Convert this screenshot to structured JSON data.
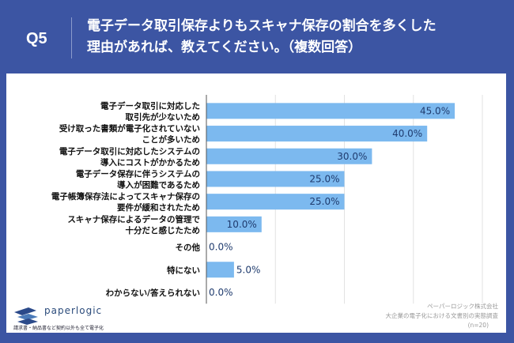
{
  "header": {
    "q": "Q5",
    "title_line1": "電子データ取引保存よりもスキャナ保存の割合を多くした",
    "title_line2": "理由があれば、教えてください。（複数回答）"
  },
  "chart_data": {
    "type": "bar",
    "orientation": "horizontal",
    "xlim": [
      0,
      50
    ],
    "grid": true,
    "bar_color": "#7cb9ef",
    "categories": [
      [
        "電子データ取引に対応した",
        "取引先が少ないため"
      ],
      [
        "受け取った書類が電子化されていない",
        "ことが多いため"
      ],
      [
        "電子データ取引に対応したシステムの",
        "導入にコストがかかるため"
      ],
      [
        "電子データ保存に伴うシステムの",
        "導入が困難であるため"
      ],
      [
        "電子帳簿保存法によってスキャナ保存の",
        "要件が緩和されたため"
      ],
      [
        "スキャナ保存によるデータの管理で",
        "十分だと感じたため"
      ],
      [
        "その他"
      ],
      [
        "特にない"
      ],
      [
        "わからない/答えられない"
      ]
    ],
    "values": [
      45.0,
      40.0,
      30.0,
      25.0,
      25.0,
      10.0,
      0.0,
      5.0,
      0.0
    ],
    "labels": [
      "45.0%",
      "40.0%",
      "30.0%",
      "25.0%",
      "25.0%",
      "10.0%",
      "0.0%",
      "5.0%",
      "0.0%"
    ]
  },
  "footer": {
    "logo": "paperlogic",
    "tagline": "請求書・納品書など契約以外も全て電子化",
    "source1": "ペーパーロジック株式会社",
    "source2": "大企業の電子化における文書別の実態調査",
    "n": "(n=20)"
  }
}
